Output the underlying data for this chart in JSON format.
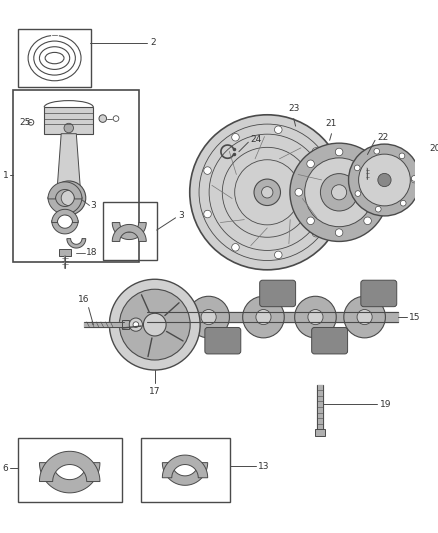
{
  "bg_color": "#ffffff",
  "line_color": "#4a4a4a",
  "fill_light": "#d0d0d0",
  "fill_mid": "#b0b0b0",
  "fill_dark": "#888888",
  "label_fs": 6.5,
  "figsize": [
    4.38,
    5.33
  ],
  "dpi": 100
}
